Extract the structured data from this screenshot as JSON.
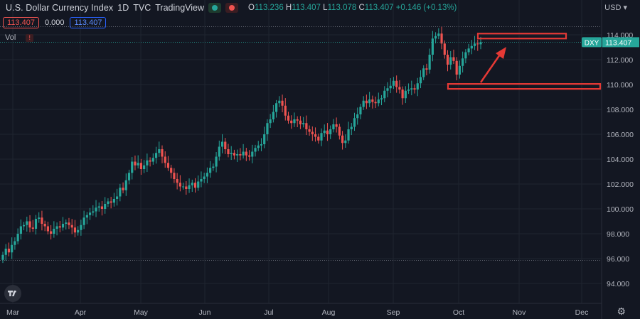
{
  "header": {
    "symbol_title": "U.S. Dollar Currency Index",
    "interval": "1D",
    "source": "TVC",
    "platform": "TradingView",
    "o_label": "O",
    "o_value": "113.236",
    "h_label": "H",
    "h_value": "113.407",
    "l_label": "L",
    "l_value": "113.078",
    "c_label": "C",
    "c_value": "113.407",
    "change": "+0.146 (+0.13%)",
    "sell_price": "113.407",
    "spread": "0.000",
    "buy_price": "113.407",
    "volume_label": "Vol",
    "currency": "USD"
  },
  "colors": {
    "background": "#131722",
    "up": "#26a69a",
    "down": "#ef5350",
    "annotation": "#e53935",
    "grid": "#1f2430"
  },
  "chart_data": {
    "type": "candlestick",
    "y_axis": {
      "ticks": [
        "94.000",
        "96.000",
        "98.000",
        "100.000",
        "102.000",
        "104.000",
        "106.000",
        "108.000",
        "110.000",
        "112.000",
        "114.000"
      ],
      "range": [
        92.5,
        116.0
      ],
      "position": "right"
    },
    "x_axis": {
      "ticks": [
        "Mar",
        "Apr",
        "May",
        "Jun",
        "Jul",
        "Aug",
        "Sep",
        "Oct",
        "Nov",
        "Dec"
      ]
    },
    "last_price_label": {
      "symbol": "DXY",
      "value": "113.407"
    },
    "price_line": 113.407,
    "dotted_levels": [
      114.65,
      95.85
    ],
    "series": [
      {
        "name": "DXY",
        "close": [
          96.3,
          96.8,
          96.5,
          97.1,
          97.4,
          98.0,
          98.6,
          98.7,
          99.0,
          98.5,
          98.4,
          99.2,
          99.3,
          98.8,
          98.6,
          98.2,
          98.0,
          98.4,
          98.6,
          98.5,
          98.8,
          98.9,
          98.7,
          98.5,
          98.1,
          98.3,
          98.7,
          99.3,
          99.5,
          99.7,
          99.8,
          100.1,
          100.2,
          100.0,
          100.4,
          100.6,
          100.5,
          100.8,
          101.0,
          101.7,
          101.5,
          102.3,
          102.9,
          103.8,
          103.5,
          103.7,
          103.2,
          103.5,
          103.9,
          103.8,
          104.1,
          104.5,
          104.8,
          104.2,
          103.7,
          103.3,
          102.9,
          102.4,
          102.1,
          101.8,
          101.8,
          101.6,
          101.9,
          102.1,
          101.7,
          102.2,
          102.4,
          102.6,
          102.9,
          103.3,
          103.4,
          104.2,
          105.0,
          105.4,
          104.8,
          104.4,
          104.5,
          104.3,
          104.4,
          104.3,
          104.6,
          104.3,
          104.2,
          104.6,
          104.9,
          105.1,
          105.2,
          106.0,
          106.9,
          107.2,
          107.8,
          108.5,
          108.7,
          108.3,
          107.5,
          107.1,
          106.9,
          107.2,
          107.1,
          106.8,
          106.9,
          106.4,
          106.2,
          106.0,
          105.8,
          105.5,
          106.1,
          106.3,
          106.0,
          106.4,
          106.8,
          106.6,
          105.9,
          105.3,
          105.5,
          106.4,
          106.6,
          107.3,
          107.6,
          108.2,
          108.7,
          108.5,
          108.8,
          108.6,
          108.5,
          108.8,
          108.9,
          109.5,
          109.7,
          109.9,
          110.3,
          109.8,
          109.6,
          108.9,
          109.5,
          109.6,
          109.7,
          109.6,
          110.1,
          110.6,
          111.3,
          111.2,
          112.4,
          113.7,
          113.9,
          114.1,
          113.3,
          112.4,
          111.6,
          112.2,
          111.9,
          110.8,
          111.5,
          112.1,
          112.6,
          112.9,
          113.1,
          113.3,
          113.236,
          113.407
        ]
      }
    ],
    "annotations": [
      {
        "type": "rectangle",
        "price_top": 114.1,
        "price_bottom": 113.7,
        "label": ""
      },
      {
        "type": "rectangle",
        "price_top": 110.05,
        "price_bottom": 109.65,
        "label": ""
      },
      {
        "type": "arrow",
        "direction": "up",
        "label": ""
      }
    ]
  }
}
